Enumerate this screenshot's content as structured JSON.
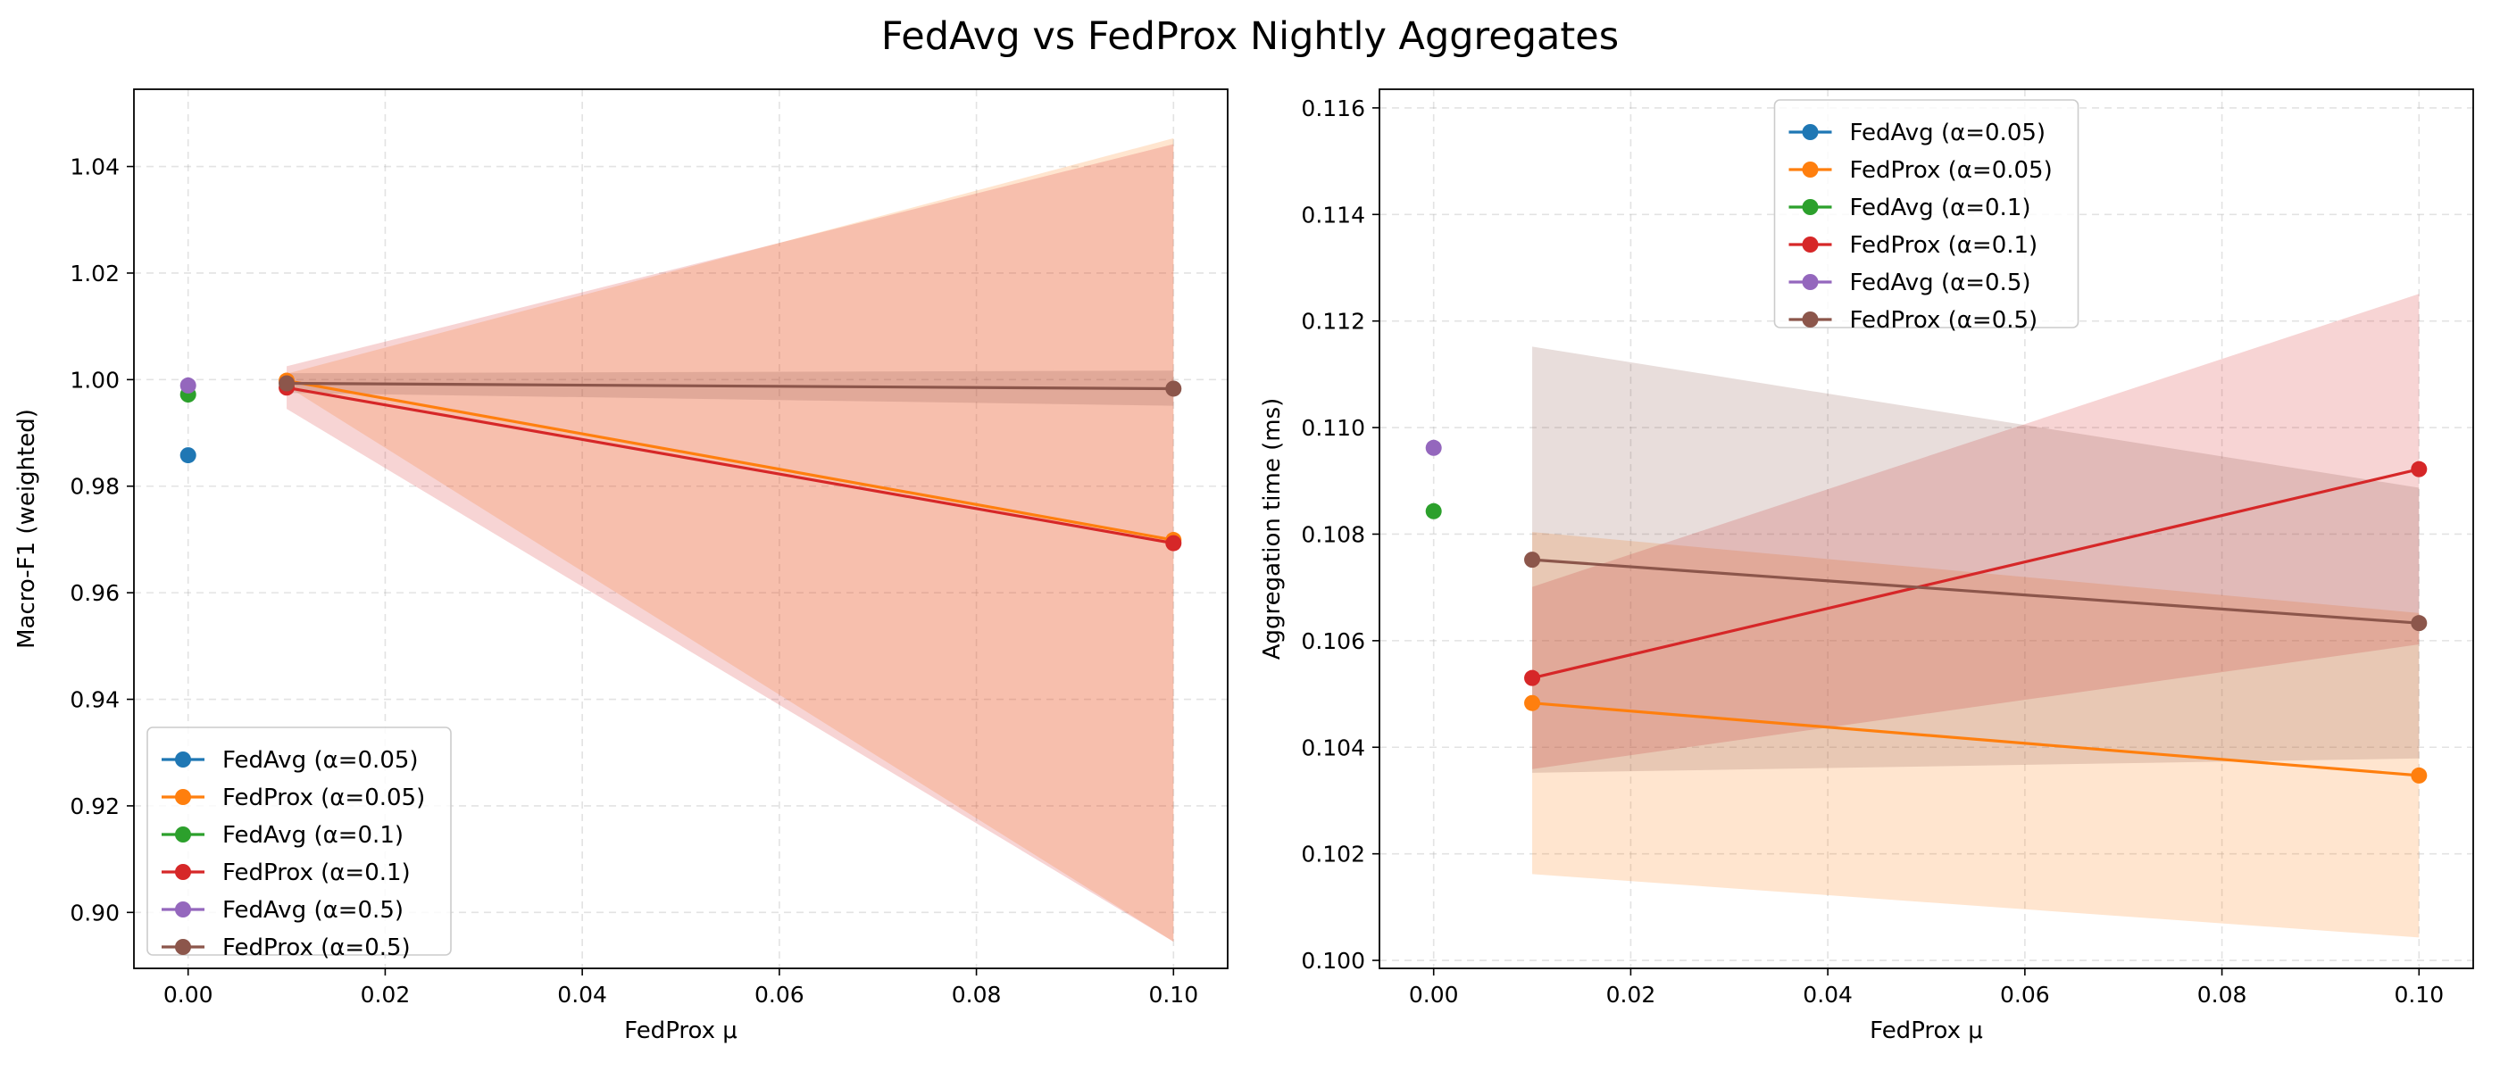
{
  "figure": {
    "title": "FedAvg vs FedProx Nightly Aggregates"
  },
  "chart_data": [
    {
      "type": "line",
      "title": "",
      "xlabel": "FedProx μ",
      "ylabel": "Macro-F1 (weighted)",
      "xlim": [
        -0.0055,
        0.1055
      ],
      "ylim": [
        0.8895,
        1.0545
      ],
      "xticks": [
        0.0,
        0.02,
        0.04,
        0.06,
        0.08,
        0.1
      ],
      "xtick_labels": [
        "0.00",
        "0.02",
        "0.04",
        "0.06",
        "0.08",
        "0.10"
      ],
      "yticks": [
        0.9,
        0.92,
        0.94,
        0.96,
        0.98,
        1.0,
        1.02,
        1.04
      ],
      "ytick_labels": [
        "0.90",
        "0.92",
        "0.94",
        "0.96",
        "0.98",
        "1.00",
        "1.02",
        "1.04"
      ],
      "grid": true,
      "legend_position": "lower-left",
      "series": [
        {
          "name": "FedAvg (α=0.05)",
          "color": "#1f77b4",
          "x": [
            0.0
          ],
          "y": [
            0.9858
          ]
        },
        {
          "name": "FedProx (α=0.05)",
          "color": "#ff7f0e",
          "x": [
            0.01,
            0.1
          ],
          "y": [
            0.9998,
            0.9699
          ],
          "band_low": [
            0.9988,
            0.8945
          ],
          "band_high": [
            1.0011,
            1.0453
          ]
        },
        {
          "name": "FedAvg (α=0.1)",
          "color": "#2ca02c",
          "x": [
            0.0
          ],
          "y": [
            0.9972
          ]
        },
        {
          "name": "FedProx (α=0.1)",
          "color": "#d62728",
          "x": [
            0.01,
            0.1
          ],
          "y": [
            0.9985,
            0.9693
          ],
          "band_low": [
            0.9945,
            0.8945
          ],
          "band_high": [
            1.0025,
            1.0442
          ]
        },
        {
          "name": "FedAvg (α=0.5)",
          "color": "#9467bd",
          "x": [
            0.0
          ],
          "y": [
            0.9989
          ]
        },
        {
          "name": "FedProx (α=0.5)",
          "color": "#8c564b",
          "x": [
            0.01,
            0.1
          ],
          "y": [
            0.9993,
            0.9983
          ],
          "band_low": [
            0.9975,
            0.9951
          ],
          "band_high": [
            1.0012,
            1.0017
          ]
        }
      ]
    },
    {
      "type": "line",
      "title": "",
      "xlabel": "FedProx μ",
      "ylabel": "Aggregation time (ms)",
      "xlim": [
        -0.0055,
        0.1055
      ],
      "ylim": [
        0.09985,
        0.11635
      ],
      "xticks": [
        0.0,
        0.02,
        0.04,
        0.06,
        0.08,
        0.1
      ],
      "xtick_labels": [
        "0.00",
        "0.02",
        "0.04",
        "0.06",
        "0.08",
        "0.10"
      ],
      "yticks": [
        0.1,
        0.102,
        0.104,
        0.106,
        0.108,
        0.11,
        0.112,
        0.114,
        0.116
      ],
      "ytick_labels": [
        "0.100",
        "0.102",
        "0.104",
        "0.106",
        "0.108",
        "0.110",
        "0.112",
        "0.114",
        "0.116"
      ],
      "grid": true,
      "legend_position": "upper-center",
      "series": [
        {
          "name": "FedAvg (α=0.05)",
          "color": "#1f77b4",
          "x": [],
          "y": []
        },
        {
          "name": "FedProx (α=0.05)",
          "color": "#ff7f0e",
          "x": [
            0.01,
            0.1
          ],
          "y": [
            0.10483,
            0.10347
          ],
          "band_low": [
            0.10162,
            0.10043
          ],
          "band_high": [
            0.10804,
            0.10652
          ]
        },
        {
          "name": "FedAvg (α=0.1)",
          "color": "#2ca02c",
          "x": [
            0.0
          ],
          "y": [
            0.10843
          ]
        },
        {
          "name": "FedProx (α=0.1)",
          "color": "#d62728",
          "x": [
            0.01,
            0.1
          ],
          "y": [
            0.1053,
            0.10922
          ],
          "band_low": [
            0.10359,
            0.10593
          ],
          "band_high": [
            0.10701,
            0.11251
          ]
        },
        {
          "name": "FedAvg (α=0.5)",
          "color": "#9467bd",
          "x": [
            0.0
          ],
          "y": [
            0.10962
          ]
        },
        {
          "name": "FedProx (α=0.5)",
          "color": "#8c564b",
          "x": [
            0.01,
            0.1
          ],
          "y": [
            0.10752,
            0.10633
          ],
          "band_low": [
            0.10352,
            0.10379
          ],
          "band_high": [
            0.11152,
            0.10887
          ]
        }
      ]
    }
  ]
}
